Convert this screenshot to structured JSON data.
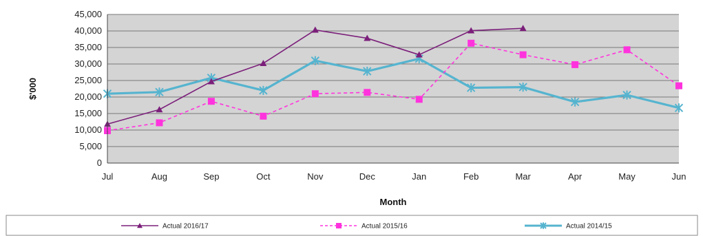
{
  "chart_data": {
    "type": "line",
    "title": "",
    "xlabel": "Month",
    "ylabel": "$'000",
    "ylim": [
      0,
      45000
    ],
    "ytick_step": 5000,
    "yticks": [
      "0",
      "5,000",
      "10,000",
      "15,000",
      "20,000",
      "25,000",
      "30,000",
      "35,000",
      "40,000",
      "45,000"
    ],
    "grid": "horizontal",
    "legend_position": "bottom",
    "plot_background": "#d4d4d4",
    "categories": [
      "Jul",
      "Aug",
      "Sep",
      "Oct",
      "Nov",
      "Dec",
      "Jan",
      "Feb",
      "Mar",
      "Apr",
      "May",
      "Jun"
    ],
    "series": [
      {
        "name": "Actual 2016/17",
        "color": "#7b1f7a",
        "marker": "triangle",
        "dash": "solid",
        "values": [
          11800,
          16200,
          24700,
          30200,
          40300,
          37800,
          32800,
          40100,
          40800,
          null,
          null,
          null
        ]
      },
      {
        "name": "Actual 2015/16",
        "color": "#ff33dd",
        "marker": "square",
        "dash": "dashed",
        "values": [
          9800,
          12200,
          18700,
          14200,
          21000,
          21400,
          19300,
          36300,
          32800,
          29800,
          34300,
          23400
        ]
      },
      {
        "name": "Actual 2014/15",
        "color": "#55b4cf",
        "marker": "star",
        "dash": "solid",
        "values": [
          21000,
          21500,
          25800,
          22000,
          31000,
          27800,
          31600,
          22800,
          23000,
          18500,
          20600,
          16700
        ]
      }
    ]
  }
}
